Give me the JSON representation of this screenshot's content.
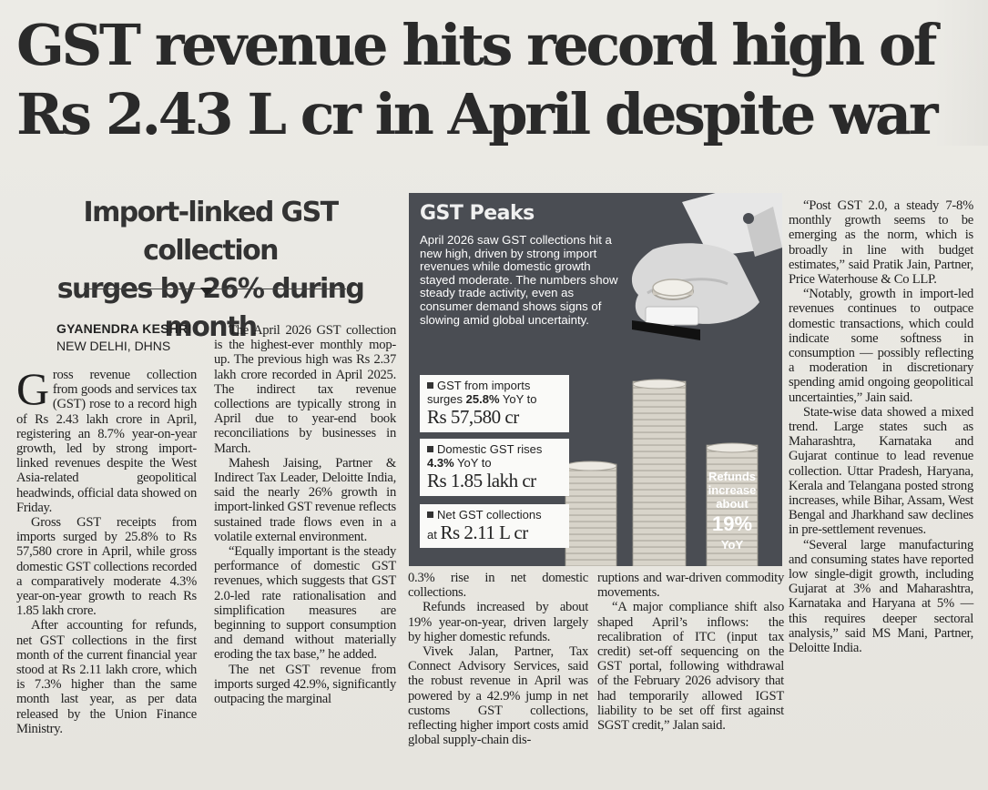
{
  "article": {
    "headline_line1": "GST revenue hits record high of",
    "headline_line2": "Rs 2.43 L cr in April despite war",
    "subhead_line1": "Import-linked GST collection",
    "subhead_line2": "surges by 26% during month",
    "author": "GYANENDRA KESHRI",
    "dateline": "NEW DELHI, DHNS"
  },
  "body": {
    "col1": {
      "dropcap": "G",
      "p1": "ross revenue collection from goods and services tax (GST) rose to a record high of Rs 2.43 lakh crore in April, registering an 8.7% year-on-year growth, led by strong import-linked revenues despite the West Asia-related geopolitical headwinds, official data showed on Friday.",
      "p2": "Gross GST receipts from imports surged by 25.8% to Rs 57,580 crore in April, while gross domestic GST collections recorded a comparatively moderate 4.3% year-on-year growth to reach Rs 1.85 lakh crore.",
      "p3": "After accounting for refunds, net GST collections in the first month of the current financial year stood at Rs 2.11 lakh crore, which is 7.3% higher than the same month last year, as per data released by the Union Finance Ministry."
    },
    "col2": {
      "p1": "The April 2026 GST collection is the highest-ever monthly mop-up. The previous high was Rs 2.37 lakh crore recorded in April 2025. The indirect tax revenue collections are typically strong in April due to year-end book reconciliations by businesses in March.",
      "p2": "Mahesh Jaising, Partner & Indirect Tax Leader, Deloitte India, said the nearly 26% growth in import-linked GST revenue reflects sustained trade flows even in a volatile external environment.",
      "p3": "“Equally important is the steady performance of domestic GST revenues, which suggests that GST 2.0-led rate rationalisation and simplification measures are beginning to support consumption and demand without materially eroding the tax base,” he added.",
      "p4": "The net GST revenue from imports surged 42.9%, significantly outpacing the marginal"
    },
    "col3": {
      "p1": "0.3% rise in net domestic collections.",
      "p2": "Refunds increased by about 19% year-on-year, driven largely by higher domestic refunds.",
      "p3": "Vivek Jalan, Partner, Tax Connect Advisory Services, said the robust revenue in April was powered by a 42.9% jump in net customs GST collections, reflecting higher import costs amid global supply-chain dis-"
    },
    "col4": {
      "p1": "ruptions and war-driven commodity movements.",
      "p2": "“A major compliance shift also shaped April’s inflows: the recalibration of ITC (input tax credit) set-off sequencing on the GST portal, following withdrawal of the February 2026 advisory that had temporarily allowed IGST liability to be set off first against SGST credit,” Jalan said."
    },
    "col5": {
      "p1": "“Post GST 2.0, a steady 7-8% monthly growth seems to be emerging as the norm, which is broadly in line with budget estimates,” said Pratik Jain, Partner, Price Waterhouse & Co LLP.",
      "p2": "“Notably, growth in import-led revenues continues to outpace domestic transactions, which could indicate some softness in consumption — possibly reflecting a moderation in discretionary spending amid ongoing geopolitical uncertainties,” Jain said.",
      "p3": "State-wise data showed a mixed trend. Large states such as Maharashtra, Karnataka and Gujarat continue to lead revenue collection. Uttar Pradesh, Haryana, Kerala and Telangana posted strong increases, while Bihar, Assam, West Bengal and Jharkhand saw declines in pre-settlement revenues.",
      "p4": "“Several large manufacturing and consuming states have reported low single-digit growth, including Gujarat at 3% and Maharashtra, Karnataka and Haryana at 5% — this requires deeper sectoral analysis,” said MS Mani, Partner, Deloitte India."
    }
  },
  "graphic": {
    "title": "GST Peaks",
    "intro": "April 2026 saw GST collections hit a new high, driven by strong import revenues while domestic growth stayed moderate. The numbers show steady trade activity, even as consumer demand shows signs of slowing amid global uncertainty.",
    "card1": {
      "label": "GST from imports",
      "label2_prefix": "surges ",
      "label2_bold": "25.8%",
      "label2_suffix": " YoY to",
      "value": "Rs 57,580 cr"
    },
    "card2": {
      "label": "Domestic GST rises",
      "label2_bold": "4.3%",
      "label2_suffix": " YoY to",
      "value": "Rs 1.85 lakh cr"
    },
    "card3": {
      "label": "Net GST collections",
      "prefix": "at ",
      "value": "Rs 2.11 L cr"
    },
    "refunds": {
      "line1": "Refunds",
      "line2": "increase",
      "line3": "about",
      "value": "19%",
      "unit": "YoY"
    },
    "colors": {
      "background": "#4a4d53",
      "card": "#fafaf8",
      "coin": "#d6d2c8"
    },
    "icons": [
      "hand-with-coin-illustration",
      "coin-stack-illustration"
    ]
  }
}
